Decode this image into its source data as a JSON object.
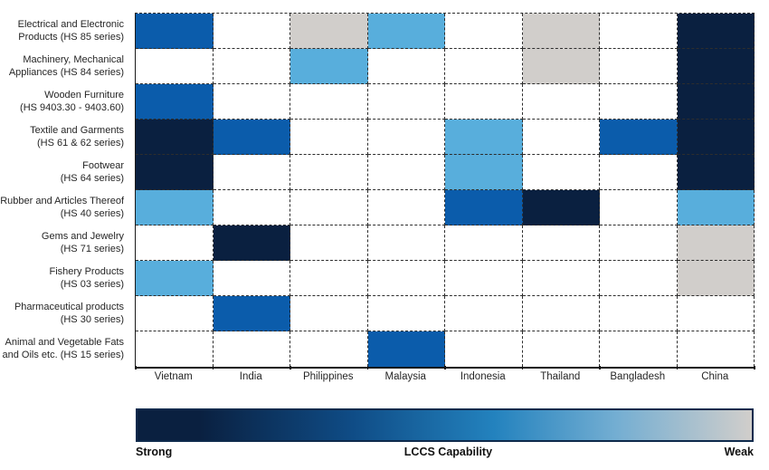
{
  "chart_data": {
    "type": "heatmap",
    "x_categories": [
      "Vietnam",
      "India",
      "Philippines",
      "Malaysia",
      "Indonesia",
      "Thailand",
      "Bangladesh",
      "China"
    ],
    "y_categories": [
      {
        "line1": "Electrical and Electronic",
        "line2": "Products (HS 85 series)"
      },
      {
        "line1": "Machinery, Mechanical",
        "line2": "Appliances (HS 84 series)"
      },
      {
        "line1": "Wooden Furniture",
        "line2": "(HS 9403.30 - 9403.60)"
      },
      {
        "line1": "Textile and Garments",
        "line2": "(HS 61 & 62 series)"
      },
      {
        "line1": "Footwear",
        "line2": "(HS 64 series)"
      },
      {
        "line1": "Rubber and Articles Thereof",
        "line2": "(HS 40 series)"
      },
      {
        "line1": "Gems and Jewelry",
        "line2": "(HS 71 series)"
      },
      {
        "line1": "Fishery Products",
        "line2": "(HS 03 series)"
      },
      {
        "line1": "Pharmaceutical products",
        "line2": "(HS 30 series)"
      },
      {
        "line1": "Animal and Vegetable Fats",
        "line2": "and Oils etc. (HS 15 series)"
      }
    ],
    "values": [
      [
        "medium",
        "none",
        "weak",
        "light",
        "none",
        "weak",
        "none",
        "strong"
      ],
      [
        "none",
        "none",
        "light",
        "none",
        "none",
        "weak",
        "none",
        "strong"
      ],
      [
        "medium",
        "none",
        "none",
        "none",
        "none",
        "none",
        "none",
        "strong"
      ],
      [
        "strong",
        "medium",
        "none",
        "none",
        "light",
        "none",
        "medium",
        "strong"
      ],
      [
        "strong",
        "none",
        "none",
        "none",
        "light",
        "none",
        "none",
        "strong"
      ],
      [
        "light",
        "none",
        "none",
        "none",
        "medium",
        "strong",
        "none",
        "light"
      ],
      [
        "none",
        "strong",
        "none",
        "none",
        "none",
        "none",
        "none",
        "weak"
      ],
      [
        "light",
        "none",
        "none",
        "none",
        "none",
        "none",
        "none",
        "weak"
      ],
      [
        "none",
        "medium",
        "none",
        "none",
        "none",
        "none",
        "none",
        "none"
      ],
      [
        "none",
        "none",
        "none",
        "medium",
        "none",
        "none",
        "none",
        "none"
      ]
    ],
    "scale": {
      "strong": "#0A2040",
      "medium": "#0B5CAB",
      "light": "#58AEDC",
      "weak": "#D1CECB",
      "none": "#FFFFFF"
    },
    "legend": {
      "left": "Strong",
      "center": "LCCS Capability",
      "right": "Weak",
      "gradient": [
        "#0A2040",
        "#0F4C86",
        "#2382BE",
        "#74AED2",
        "#D1CECB"
      ]
    }
  }
}
